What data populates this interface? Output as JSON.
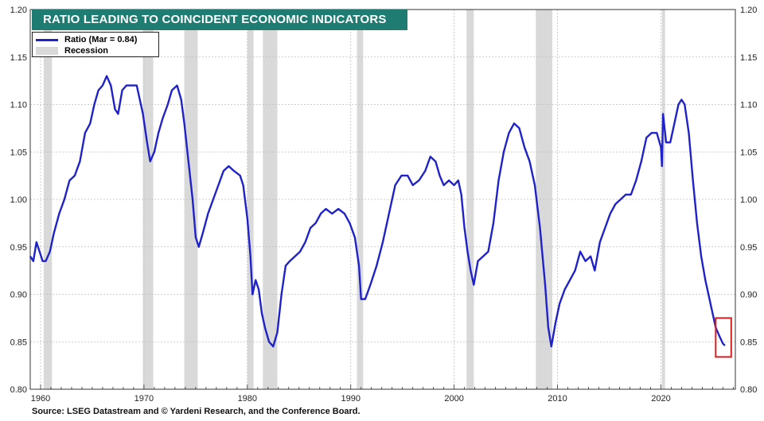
{
  "chart_data": {
    "type": "line",
    "title": "RATIO LEADING TO COINCIDENT ECONOMIC INDICATORS",
    "xlim": [
      1959,
      2027.2
    ],
    "ylim": [
      0.8,
      1.2
    ],
    "grid": true,
    "legend_placement": "top-left",
    "x_ticks": [
      {
        "value": 1960,
        "label": "1960"
      },
      {
        "value": 1970,
        "label": "1970"
      },
      {
        "value": 1980,
        "label": "1980"
      },
      {
        "value": 1990,
        "label": "1990"
      },
      {
        "value": 2000,
        "label": "2000"
      },
      {
        "value": 2010,
        "label": "2010"
      },
      {
        "value": 2020,
        "label": "2020"
      }
    ],
    "y_ticks": [
      {
        "value": 0.8,
        "label": "0.80"
      },
      {
        "value": 0.85,
        "label": "0.85"
      },
      {
        "value": 0.9,
        "label": "0.90"
      },
      {
        "value": 0.95,
        "label": "0.95"
      },
      {
        "value": 1.0,
        "label": "1.00"
      },
      {
        "value": 1.05,
        "label": "1.05"
      },
      {
        "value": 1.1,
        "label": "1.10"
      },
      {
        "value": 1.15,
        "label": "1.15"
      },
      {
        "value": 1.2,
        "label": "1.20"
      }
    ],
    "legend": [
      {
        "label": "Ratio  (Mar = 0.84)",
        "kind": "line",
        "color": "#1f22c8"
      },
      {
        "label": "Recession",
        "kind": "box",
        "color": "#d9d9d9"
      }
    ],
    "recessions": [
      [
        1960.3,
        1961.1
      ],
      [
        1969.9,
        1970.9
      ],
      [
        1973.9,
        1975.2
      ],
      [
        1980.0,
        1980.6
      ],
      [
        1981.5,
        1982.9
      ],
      [
        1990.6,
        1991.2
      ],
      [
        2001.2,
        2001.9
      ],
      [
        2007.9,
        2009.5
      ],
      [
        2020.1,
        2020.4
      ]
    ],
    "series": [
      {
        "values": [
          [
            1959.0,
            0.94
          ],
          [
            1959.3,
            0.935
          ],
          [
            1959.6,
            0.955
          ],
          [
            1959.9,
            0.945
          ],
          [
            1960.2,
            0.935
          ],
          [
            1960.5,
            0.935
          ],
          [
            1960.9,
            0.945
          ],
          [
            1961.3,
            0.965
          ],
          [
            1961.8,
            0.985
          ],
          [
            1962.3,
            1.0
          ],
          [
            1962.8,
            1.02
          ],
          [
            1963.3,
            1.025
          ],
          [
            1963.8,
            1.04
          ],
          [
            1964.3,
            1.07
          ],
          [
            1964.8,
            1.08
          ],
          [
            1965.2,
            1.1
          ],
          [
            1965.6,
            1.115
          ],
          [
            1966.0,
            1.12
          ],
          [
            1966.4,
            1.13
          ],
          [
            1966.8,
            1.12
          ],
          [
            1967.2,
            1.095
          ],
          [
            1967.5,
            1.09
          ],
          [
            1967.9,
            1.115
          ],
          [
            1968.3,
            1.12
          ],
          [
            1968.8,
            1.12
          ],
          [
            1969.3,
            1.12
          ],
          [
            1969.6,
            1.105
          ],
          [
            1969.9,
            1.09
          ],
          [
            1970.3,
            1.06
          ],
          [
            1970.6,
            1.04
          ],
          [
            1971.0,
            1.05
          ],
          [
            1971.4,
            1.07
          ],
          [
            1971.8,
            1.085
          ],
          [
            1972.3,
            1.1
          ],
          [
            1972.7,
            1.115
          ],
          [
            1973.2,
            1.12
          ],
          [
            1973.6,
            1.105
          ],
          [
            1973.9,
            1.08
          ],
          [
            1974.3,
            1.04
          ],
          [
            1974.7,
            1.0
          ],
          [
            1975.0,
            0.96
          ],
          [
            1975.3,
            0.95
          ],
          [
            1975.7,
            0.965
          ],
          [
            1976.2,
            0.985
          ],
          [
            1976.7,
            1.0
          ],
          [
            1977.2,
            1.015
          ],
          [
            1977.7,
            1.03
          ],
          [
            1978.2,
            1.035
          ],
          [
            1978.7,
            1.03
          ],
          [
            1979.3,
            1.025
          ],
          [
            1979.6,
            1.015
          ],
          [
            1980.0,
            0.98
          ],
          [
            1980.3,
            0.94
          ],
          [
            1980.5,
            0.9
          ],
          [
            1980.8,
            0.915
          ],
          [
            1981.1,
            0.905
          ],
          [
            1981.4,
            0.88
          ],
          [
            1981.7,
            0.865
          ],
          [
            1982.1,
            0.85
          ],
          [
            1982.5,
            0.845
          ],
          [
            1982.9,
            0.86
          ],
          [
            1983.3,
            0.9
          ],
          [
            1983.7,
            0.93
          ],
          [
            1984.1,
            0.935
          ],
          [
            1984.6,
            0.94
          ],
          [
            1985.1,
            0.945
          ],
          [
            1985.6,
            0.955
          ],
          [
            1986.1,
            0.97
          ],
          [
            1986.6,
            0.975
          ],
          [
            1987.1,
            0.985
          ],
          [
            1987.6,
            0.99
          ],
          [
            1988.2,
            0.985
          ],
          [
            1988.8,
            0.99
          ],
          [
            1989.4,
            0.985
          ],
          [
            1989.9,
            0.975
          ],
          [
            1990.4,
            0.96
          ],
          [
            1990.8,
            0.93
          ],
          [
            1991.0,
            0.895
          ],
          [
            1991.4,
            0.895
          ],
          [
            1991.9,
            0.91
          ],
          [
            1992.5,
            0.93
          ],
          [
            1993.1,
            0.955
          ],
          [
            1993.7,
            0.985
          ],
          [
            1994.3,
            1.015
          ],
          [
            1994.9,
            1.025
          ],
          [
            1995.5,
            1.025
          ],
          [
            1996.0,
            1.015
          ],
          [
            1996.6,
            1.02
          ],
          [
            1997.2,
            1.03
          ],
          [
            1997.7,
            1.045
          ],
          [
            1998.2,
            1.04
          ],
          [
            1998.6,
            1.025
          ],
          [
            1999.0,
            1.015
          ],
          [
            1999.5,
            1.02
          ],
          [
            2000.0,
            1.015
          ],
          [
            2000.4,
            1.02
          ],
          [
            2000.7,
            1.005
          ],
          [
            2001.0,
            0.97
          ],
          [
            2001.3,
            0.945
          ],
          [
            2001.6,
            0.925
          ],
          [
            2001.9,
            0.91
          ],
          [
            2002.3,
            0.935
          ],
          [
            2002.8,
            0.94
          ],
          [
            2003.3,
            0.945
          ],
          [
            2003.8,
            0.975
          ],
          [
            2004.3,
            1.02
          ],
          [
            2004.8,
            1.05
          ],
          [
            2005.3,
            1.07
          ],
          [
            2005.8,
            1.08
          ],
          [
            2006.3,
            1.075
          ],
          [
            2006.8,
            1.055
          ],
          [
            2007.3,
            1.04
          ],
          [
            2007.8,
            1.015
          ],
          [
            2008.3,
            0.97
          ],
          [
            2008.8,
            0.91
          ],
          [
            2009.1,
            0.865
          ],
          [
            2009.4,
            0.845
          ],
          [
            2009.8,
            0.87
          ],
          [
            2010.2,
            0.89
          ],
          [
            2010.7,
            0.905
          ],
          [
            2011.2,
            0.915
          ],
          [
            2011.7,
            0.925
          ],
          [
            2012.2,
            0.945
          ],
          [
            2012.7,
            0.935
          ],
          [
            2013.2,
            0.94
          ],
          [
            2013.6,
            0.925
          ],
          [
            2014.1,
            0.955
          ],
          [
            2014.6,
            0.97
          ],
          [
            2015.1,
            0.985
          ],
          [
            2015.6,
            0.995
          ],
          [
            2016.1,
            1.0
          ],
          [
            2016.6,
            1.005
          ],
          [
            2017.1,
            1.005
          ],
          [
            2017.6,
            1.02
          ],
          [
            2018.1,
            1.04
          ],
          [
            2018.6,
            1.065
          ],
          [
            2019.1,
            1.07
          ],
          [
            2019.6,
            1.07
          ],
          [
            2020.0,
            1.055
          ],
          [
            2020.1,
            1.035
          ],
          [
            2020.2,
            1.09
          ],
          [
            2020.5,
            1.06
          ],
          [
            2020.9,
            1.06
          ],
          [
            2021.3,
            1.08
          ],
          [
            2021.7,
            1.1
          ],
          [
            2022.0,
            1.105
          ],
          [
            2022.3,
            1.1
          ],
          [
            2022.7,
            1.07
          ],
          [
            2023.1,
            1.02
          ],
          [
            2023.5,
            0.975
          ],
          [
            2023.9,
            0.94
          ],
          [
            2024.3,
            0.915
          ],
          [
            2024.7,
            0.895
          ],
          [
            2025.0,
            0.88
          ],
          [
            2025.3,
            0.865
          ],
          [
            2025.7,
            0.855
          ],
          [
            2026.0,
            0.848
          ],
          [
            2026.2,
            0.846
          ]
        ]
      }
    ],
    "highlight_box": {
      "x": [
        2025.3,
        2026.8
      ],
      "y": [
        0.834,
        0.875
      ],
      "color": "#d42020"
    }
  },
  "source": "Source: LSEG Datastream and © Yardeni Research, and the Conference Board."
}
